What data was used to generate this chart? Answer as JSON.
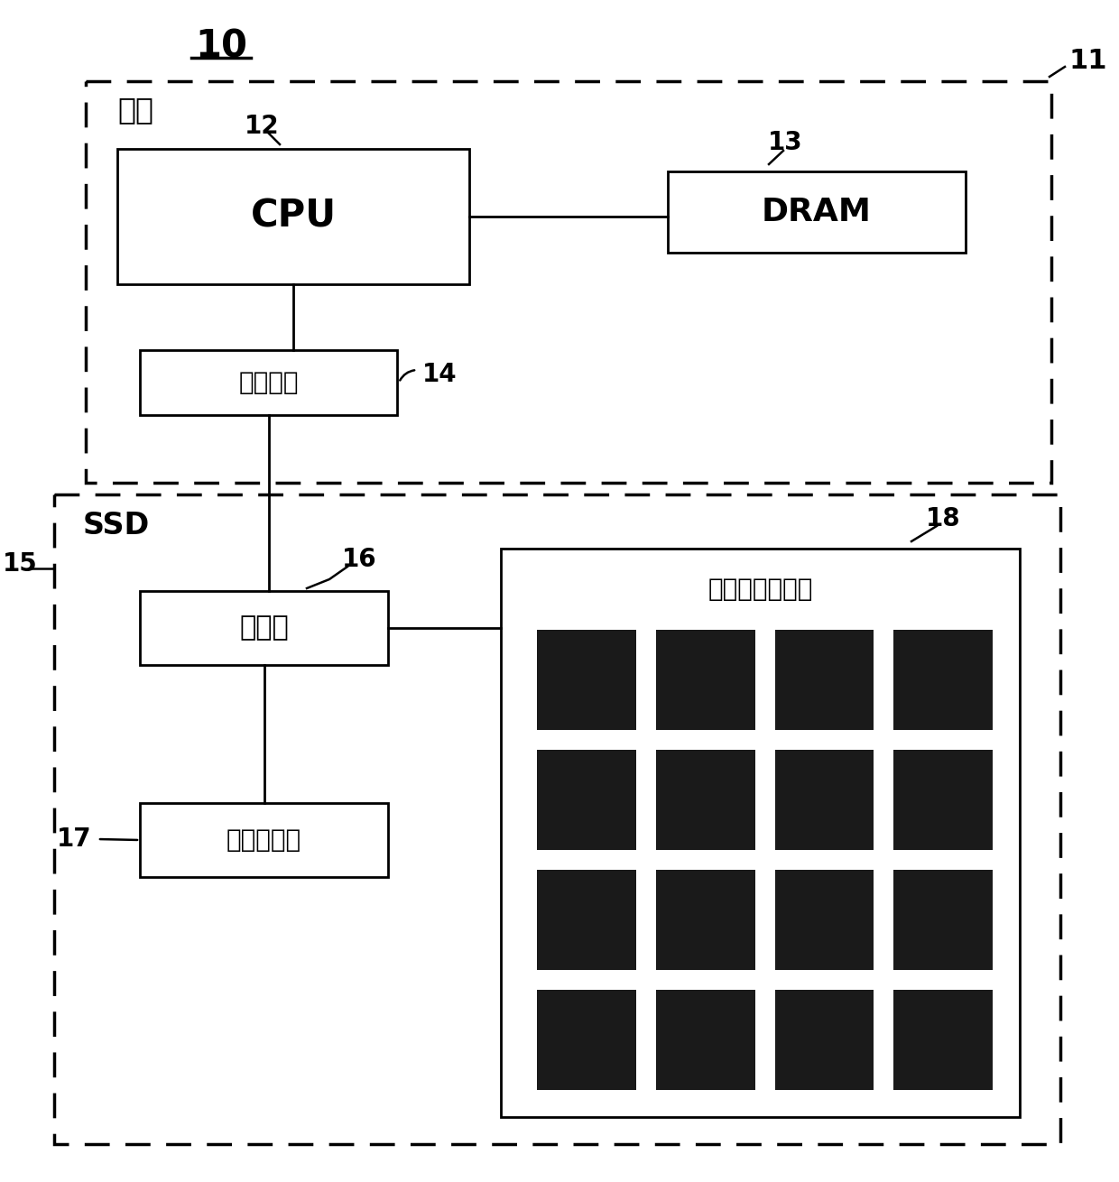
{
  "bg_color": "#ffffff",
  "title_label": "10",
  "label_11": "11",
  "label_12": "12",
  "label_13": "13",
  "label_14": "14",
  "label_15": "15",
  "label_16": "16",
  "label_17": "17",
  "label_18": "18",
  "host_label": "主机",
  "ssd_label": "SSD",
  "cpu_label": "CPU",
  "dram_label": "DRAM",
  "transfer_label": "传输接口",
  "controller_label": "控制器",
  "buffer_label": "缓冲存储器",
  "flash_label": "快闪存储器阵列",
  "line_color": "#000000",
  "box_fill": "#ffffff",
  "flash_cell_color": "#1a1a1a",
  "dpi": 100,
  "fig_w": 12.4,
  "fig_h": 13.1
}
